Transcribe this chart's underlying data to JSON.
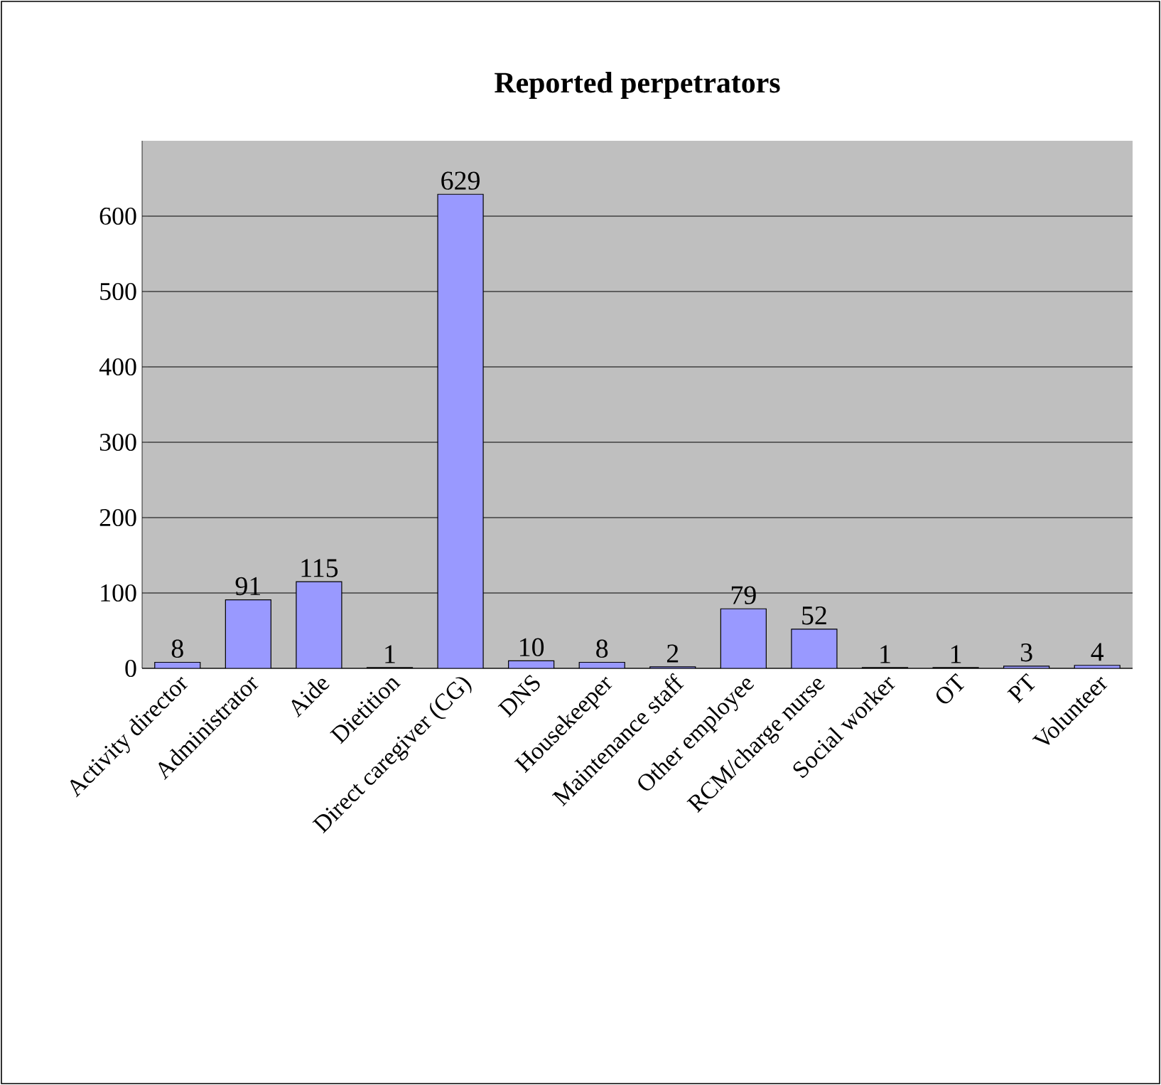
{
  "chart_data": {
    "type": "bar",
    "title": "Reported perpetrators",
    "categories": [
      "Activity director",
      "Administrator",
      "Aide",
      "Dietition",
      "Direct caregiver (CG)",
      "DNS",
      "Housekeeper",
      "Maintenance staff",
      "Other employee",
      "RCM/charge nurse",
      "Social worker",
      "OT",
      "PT",
      "Volunteer"
    ],
    "values": [
      8,
      91,
      115,
      1,
      629,
      10,
      8,
      2,
      79,
      52,
      1,
      1,
      3,
      4
    ],
    "color": "#9999ff",
    "ylim": [
      0,
      700
    ],
    "yticks": [
      0,
      100,
      200,
      300,
      400,
      500,
      600
    ],
    "grid": "y",
    "data_labels": true
  }
}
